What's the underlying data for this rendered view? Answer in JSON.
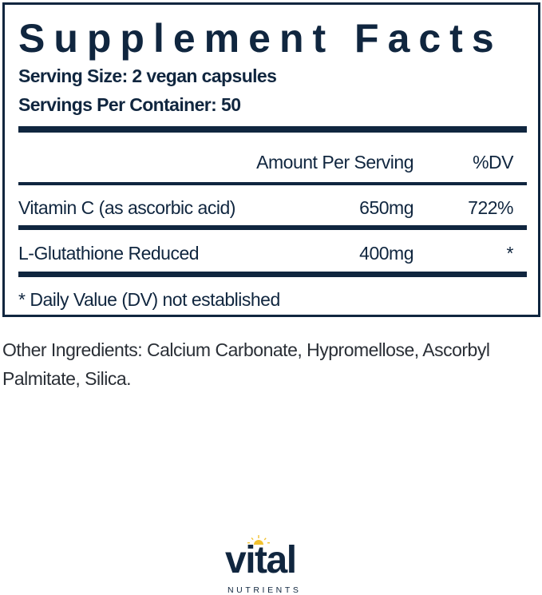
{
  "label": {
    "title": "Supplement Facts",
    "serving_size": "Serving Size: 2 vegan capsules",
    "servings_per_container": "Servings Per Container: 50",
    "header": {
      "amount": "Amount Per Serving",
      "dv": "%DV"
    },
    "rows": [
      {
        "name": "Vitamin C (as ascorbic acid)",
        "amount": "650mg",
        "dv": "722%"
      },
      {
        "name": "L-Glutathione Reduced",
        "amount": "400mg",
        "dv": "*"
      }
    ],
    "footnote": "* Daily Value (DV) not established"
  },
  "other_ingredients": "Other Ingredients: Calcium Carbonate, Hypromellose, Ascorbyl Palmitate, Silica.",
  "logo": {
    "brand": "vital",
    "sub": "NUTRIENTS",
    "colors": {
      "navy": "#10263f",
      "sun": "#f2c230"
    }
  }
}
